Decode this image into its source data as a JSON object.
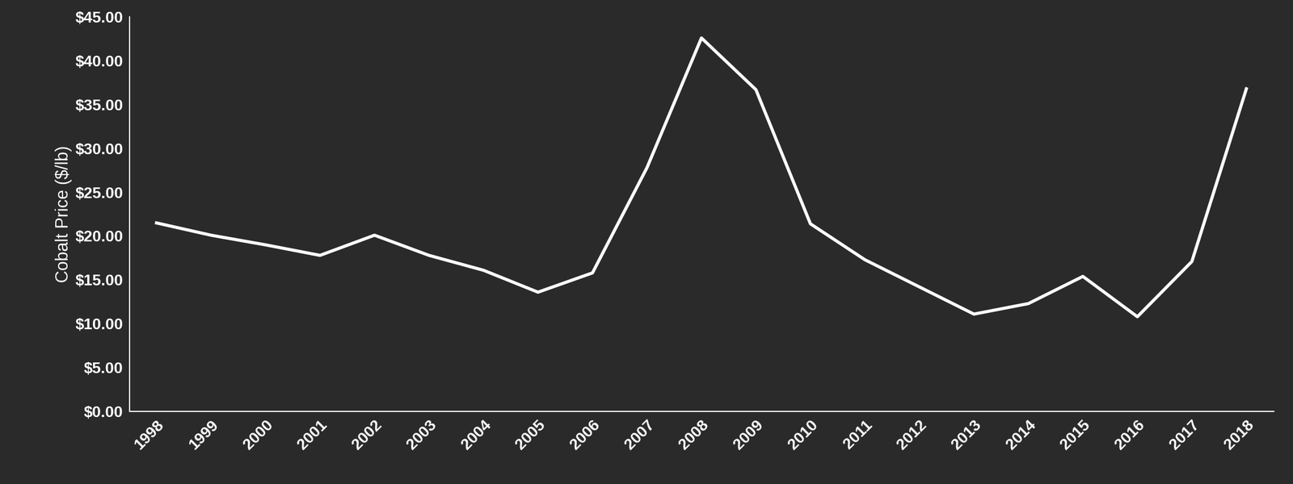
{
  "chart_data": {
    "type": "line",
    "y_label": "Cobalt Price ($/lb)",
    "categories": [
      "1998",
      "1999",
      "2000",
      "2001",
      "2002",
      "2003",
      "2004",
      "2005",
      "2006",
      "2007",
      "2008",
      "2009",
      "2010",
      "2011",
      "2012",
      "2013",
      "2014",
      "2015",
      "2016",
      "2017",
      "2018"
    ],
    "values": [
      21.5,
      20.1,
      19.0,
      17.8,
      20.1,
      17.8,
      16.1,
      13.6,
      15.8,
      27.8,
      42.6,
      36.7,
      21.4,
      17.3,
      14.2,
      11.1,
      12.3,
      15.4,
      10.8,
      17.1,
      36.8
    ],
    "color": "#ffffff",
    "ylim": [
      0,
      45
    ],
    "yticks": [
      {
        "value": 0,
        "label": "$0.00"
      },
      {
        "value": 5,
        "label": "$5.00"
      },
      {
        "value": 10,
        "label": "$10.00"
      },
      {
        "value": 15,
        "label": "$15.00"
      },
      {
        "value": 20,
        "label": "$20.00"
      },
      {
        "value": 25,
        "label": "$25.00"
      },
      {
        "value": 30,
        "label": "$30.00"
      },
      {
        "value": 35,
        "label": "$35.00"
      },
      {
        "value": 40,
        "label": "$40.00"
      },
      {
        "value": 45,
        "label": "$45.00"
      }
    ],
    "grid": false
  }
}
